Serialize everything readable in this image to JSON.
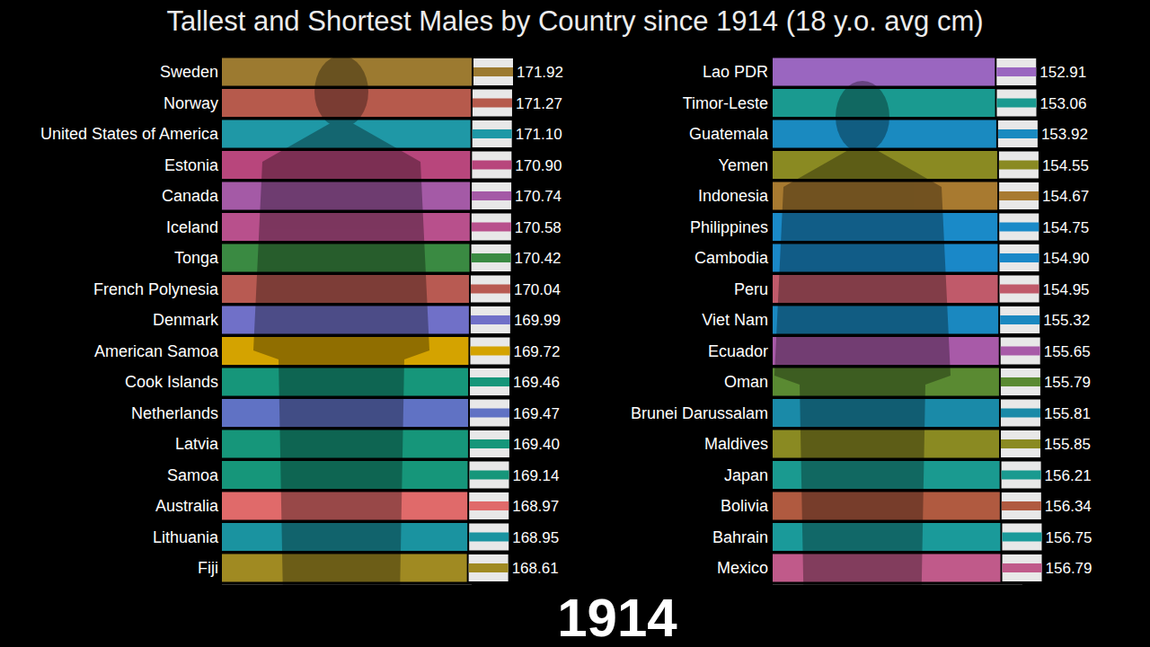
{
  "chart_data": [
    {
      "type": "bar",
      "orientation": "horizontal",
      "title": "Tallest and Shortest Males by Country since 1914 (18 y.o. avg cm)",
      "annotations": [
        "1914"
      ],
      "categories": [
        "Sweden",
        "Norway",
        "United States of America",
        "Estonia",
        "Canada",
        "Iceland",
        "Tonga",
        "French Polynesia",
        "Denmark",
        "American Samoa",
        "Cook Islands",
        "Netherlands",
        "Latvia",
        "Samoa",
        "Australia",
        "Lithuania",
        "Fiji"
      ],
      "values": [
        171.92,
        171.27,
        171.1,
        170.9,
        170.74,
        170.58,
        170.42,
        170.04,
        169.99,
        169.72,
        169.46,
        169.47,
        169.4,
        169.14,
        168.97,
        168.95,
        168.61
      ],
      "value_labels": [
        "171.92",
        "171.27",
        "171.10",
        "170.90",
        "170.74",
        "170.58",
        "170.42",
        "170.04",
        "169.99",
        "169.72",
        "169.46",
        "169.47",
        "169.40",
        "169.14",
        "168.97",
        "168.95",
        "168.61"
      ],
      "colors": [
        "#9c7a30",
        "#b65a4c",
        "#1f98a6",
        "#b8467c",
        "#a45aa6",
        "#b8508c",
        "#3a8a42",
        "#b85a52",
        "#7070c8",
        "#d4a300",
        "#16967a",
        "#6072c4",
        "#16967a",
        "#16967a",
        "#e06a6a",
        "#1a93a0",
        "#a08a22"
      ],
      "xlim": [
        0,
        171.92
      ],
      "xticks": [],
      "tick_labels": false,
      "data_labels": true
    },
    {
      "type": "bar",
      "orientation": "horizontal",
      "categories": [
        "Lao PDR",
        "Timor-Leste",
        "Guatemala",
        "Yemen",
        "Indonesia",
        "Philippines",
        "Cambodia",
        "Peru",
        "Viet Nam",
        "Ecuador",
        "Oman",
        "Brunei Darussalam",
        "Maldives",
        "Japan",
        "Bolivia",
        "Bahrain",
        "Mexico"
      ],
      "values": [
        152.91,
        153.06,
        153.92,
        154.55,
        154.67,
        154.75,
        154.9,
        154.95,
        155.32,
        155.65,
        155.79,
        155.81,
        155.85,
        156.21,
        156.34,
        156.75,
        156.79
      ],
      "value_labels": [
        "152.91",
        "153.06",
        "153.92",
        "154.55",
        "154.67",
        "154.75",
        "154.90",
        "154.95",
        "155.32",
        "155.65",
        "155.79",
        "155.81",
        "155.85",
        "156.21",
        "156.34",
        "156.75",
        "156.79"
      ],
      "colors": [
        "#9a66c0",
        "#1a9a90",
        "#1a8ac0",
        "#8a8a22",
        "#a87a30",
        "#1a8ac8",
        "#1a88c8",
        "#c05a6a",
        "#1a88c0",
        "#a85aa8",
        "#5a8a32",
        "#1a8aa8",
        "#8a8a22",
        "#1a9a90",
        "#b05a40",
        "#1a9a9a",
        "#c05a8a"
      ],
      "xlim": [
        0,
        171.92
      ],
      "xticks": [],
      "tick_labels": false,
      "data_labels": true
    }
  ]
}
